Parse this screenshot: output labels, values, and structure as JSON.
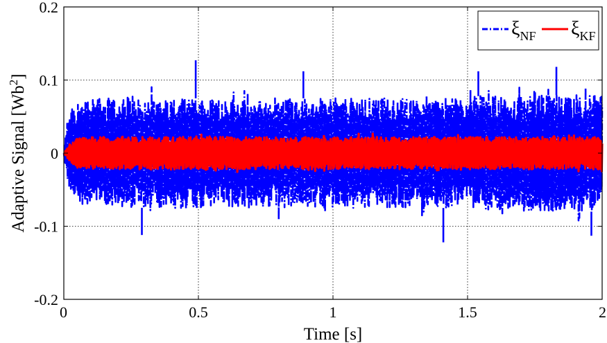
{
  "chart_data": {
    "type": "line",
    "title": "",
    "xlabel": "Time [s]",
    "ylabel_main": "Adaptive Signal [Wb",
    "ylabel_sup": "2",
    "ylabel_end": "]",
    "xlim": [
      0,
      2
    ],
    "ylim": [
      -0.2,
      0.2
    ],
    "xticks": [
      0,
      0.5,
      1,
      1.5,
      2
    ],
    "xtick_labels": [
      "0",
      "0.5",
      "1",
      "1.5",
      "2"
    ],
    "yticks": [
      -0.2,
      -0.1,
      0,
      0.1,
      0.2
    ],
    "ytick_labels": [
      "-0.2",
      "-0.1",
      "0",
      "0.1",
      "0.2"
    ],
    "grid": true,
    "legend_position": "top-right",
    "series": [
      {
        "name": "ξ",
        "subscript": "NF",
        "color": "#0000ff",
        "line_style": "dash-dot",
        "envelope": {
          "x": [
            0,
            0.01,
            0.02,
            0.04,
            0.1,
            0.3,
            0.5,
            0.7,
            1.0,
            1.3,
            1.5,
            1.7,
            1.9,
            2.0
          ],
          "upper": [
            0,
            0.04,
            0.06,
            0.07,
            0.075,
            0.075,
            0.075,
            0.075,
            0.075,
            0.075,
            0.078,
            0.078,
            0.08,
            0.08
          ],
          "lower": [
            0,
            -0.03,
            -0.05,
            -0.065,
            -0.07,
            -0.075,
            -0.075,
            -0.075,
            -0.075,
            -0.075,
            -0.075,
            -0.078,
            -0.08,
            -0.08
          ]
        },
        "peaks": [
          {
            "x": 0.49,
            "y": 0.127
          },
          {
            "x": 0.89,
            "y": 0.112
          },
          {
            "x": 1.54,
            "y": 0.112
          },
          {
            "x": 1.83,
            "y": 0.118
          },
          {
            "x": 0.29,
            "y": -0.112
          },
          {
            "x": 1.41,
            "y": -0.122
          },
          {
            "x": 1.96,
            "y": -0.113
          }
        ]
      },
      {
        "name": "ξ",
        "subscript": "KF",
        "color": "#ff0000",
        "line_style": "solid",
        "envelope": {
          "x": [
            0,
            0.02,
            0.05,
            0.1,
            0.5,
            1.0,
            1.5,
            2.0
          ],
          "upper": [
            0,
            0.01,
            0.02,
            0.022,
            0.022,
            0.022,
            0.022,
            0.022
          ],
          "lower": [
            0,
            -0.01,
            -0.02,
            -0.022,
            -0.022,
            -0.022,
            -0.022,
            -0.022
          ]
        }
      }
    ]
  }
}
